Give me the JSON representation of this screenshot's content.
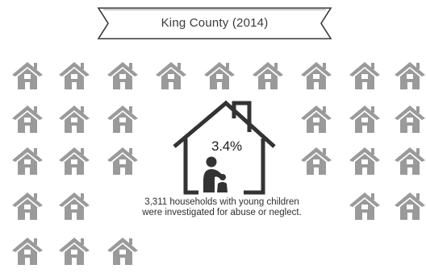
{
  "banner": {
    "title": "King County (2014)"
  },
  "highlight": {
    "percent": "3.4%",
    "caption_line1": "3,311 households with young children",
    "caption_line2": "were investigated for abuse or neglect."
  },
  "icons": {
    "small": "house-icon",
    "large": "house-with-parent-and-child-icon"
  },
  "colors": {
    "icon_fill": "#9a9a9a",
    "outline": "#3a3a3a"
  }
}
